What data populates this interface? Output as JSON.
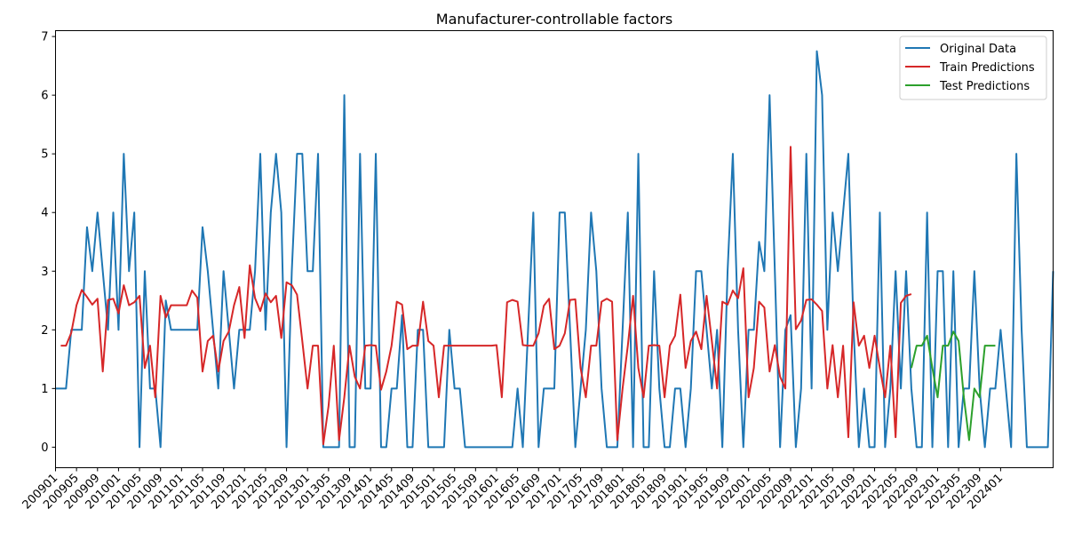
{
  "chart_data": {
    "type": "line",
    "title": "Manufacturer-controllable factors",
    "xlabel": "",
    "ylabel": "",
    "ylim": [
      -0.35,
      7.1
    ],
    "yticks": [
      0,
      1,
      2,
      3,
      4,
      5,
      6,
      7
    ],
    "legend_position": "top-right",
    "grid": false,
    "x_tick_labels": [
      "200901",
      "200905",
      "200909",
      "201001",
      "201005",
      "201009",
      "201101",
      "201105",
      "201109",
      "201201",
      "201205",
      "201209",
      "201301",
      "201305",
      "201309",
      "201401",
      "201405",
      "201409",
      "201501",
      "201505",
      "201509",
      "201601",
      "201605",
      "201609",
      "201701",
      "201705",
      "201709",
      "201801",
      "201805",
      "201809",
      "201901",
      "201905",
      "201909",
      "202001",
      "202005",
      "202009",
      "202101",
      "202105",
      "202109",
      "202201",
      "202205",
      "202209",
      "202301",
      "202305",
      "202309",
      "202401"
    ],
    "series": [
      {
        "name": "Original Data",
        "color": "#1f77b4",
        "start_index": 0,
        "values": [
          1,
          1,
          1,
          2,
          2,
          2,
          3.75,
          3,
          4,
          3,
          2,
          4,
          2,
          5,
          3,
          4,
          0,
          3,
          1,
          1,
          0,
          2.5,
          2,
          2,
          2,
          2,
          2,
          2,
          3.75,
          3,
          2,
          1,
          3,
          2,
          1,
          2,
          2,
          2,
          3,
          5,
          2,
          4,
          5,
          4,
          0,
          3,
          5,
          5,
          3,
          3,
          5,
          0,
          0,
          0,
          0,
          6,
          0,
          0,
          5,
          1,
          1,
          5,
          0,
          0,
          1,
          1,
          2.25,
          0,
          0,
          2,
          2,
          0,
          0,
          0,
          0,
          2,
          1,
          1,
          0,
          0,
          0,
          0,
          0,
          0,
          0,
          0,
          0,
          0,
          1,
          0,
          2,
          4,
          0,
          1,
          1,
          1,
          4,
          4,
          2,
          0,
          1,
          2,
          4,
          3,
          1,
          0,
          0,
          0,
          2,
          4,
          0,
          5,
          0,
          0,
          3,
          1,
          0,
          0,
          1,
          1,
          0,
          1,
          3,
          3,
          2,
          1,
          2,
          0,
          3,
          5,
          2,
          0,
          2,
          2,
          3.5,
          3,
          6,
          3,
          0,
          2,
          2.25,
          0,
          1,
          5,
          1,
          6.75,
          6,
          2,
          4,
          3,
          4,
          5,
          2,
          0,
          1,
          0,
          0,
          4,
          0,
          1,
          3,
          1,
          3,
          1,
          0,
          0,
          4,
          0,
          3,
          3,
          0,
          3,
          0,
          1,
          1,
          3,
          1,
          0,
          1,
          1,
          2,
          1,
          0,
          5,
          2,
          0,
          0,
          0,
          0,
          0,
          3
        ]
      },
      {
        "name": "Train Predictions",
        "color": "#d62728",
        "start_index": 1,
        "values": [
          1.73,
          1.73,
          1.95,
          2.42,
          2.68,
          2.56,
          2.43,
          2.53,
          1.29,
          2.51,
          2.53,
          2.28,
          2.76,
          2.42,
          2.47,
          2.58,
          1.35,
          1.73,
          0.85,
          2.58,
          2.21,
          2.42,
          2.42,
          2.42,
          2.42,
          2.67,
          2.55,
          1.29,
          1.81,
          1.9,
          1.29,
          1.81,
          1.97,
          2.42,
          2.73,
          1.86,
          3.1,
          2.54,
          2.32,
          2.62,
          2.47,
          2.58,
          1.86,
          2.81,
          2.76,
          2.6,
          1.81,
          1.0,
          1.73,
          1.73,
          0.05,
          0.7,
          1.73,
          0.12,
          0.85,
          1.73,
          1.2,
          1.0,
          1.73,
          1.74,
          1.73,
          0.98,
          1.29,
          1.73,
          2.48,
          2.43,
          1.67,
          1.73,
          1.73,
          2.48,
          1.81,
          1.73,
          0.85,
          1.73,
          1.73,
          1.73,
          1.73,
          1.73,
          1.73,
          1.73,
          1.73,
          1.73,
          1.73,
          1.74,
          0.85,
          2.47,
          2.51,
          2.48,
          1.74,
          1.73,
          1.73,
          1.94,
          2.41,
          2.53,
          1.67,
          1.73,
          1.94,
          2.51,
          2.52,
          1.35,
          0.85,
          1.73,
          1.73,
          2.48,
          2.53,
          2.48,
          0.12,
          1.0,
          1.73,
          2.58,
          1.35,
          0.85,
          1.73,
          1.74,
          1.73,
          0.85,
          1.73,
          1.9,
          2.6,
          1.35,
          1.81,
          1.97,
          1.67,
          2.58,
          1.81,
          1.0,
          2.48,
          2.43,
          2.67,
          2.54,
          3.05,
          0.85,
          1.35,
          2.48,
          2.38,
          1.29,
          1.74,
          1.2,
          1.0,
          5.12,
          2.01,
          2.16,
          2.51,
          2.52,
          2.43,
          2.32,
          1.0,
          1.74,
          0.85,
          1.73,
          0.17,
          2.47,
          1.73,
          1.9,
          1.35,
          1.9,
          1.35,
          0.85,
          1.73,
          0.17,
          2.46,
          2.58,
          2.61
        ]
      },
      {
        "name": "Test Predictions",
        "color": "#2ca02c",
        "start_index": 163,
        "values": [
          1.35,
          1.73,
          1.73,
          1.9,
          1.35,
          0.85,
          1.73,
          1.73,
          1.97,
          1.81,
          0.85,
          0.12,
          1.0,
          0.85,
          1.73,
          1.73,
          1.73
        ]
      }
    ]
  }
}
